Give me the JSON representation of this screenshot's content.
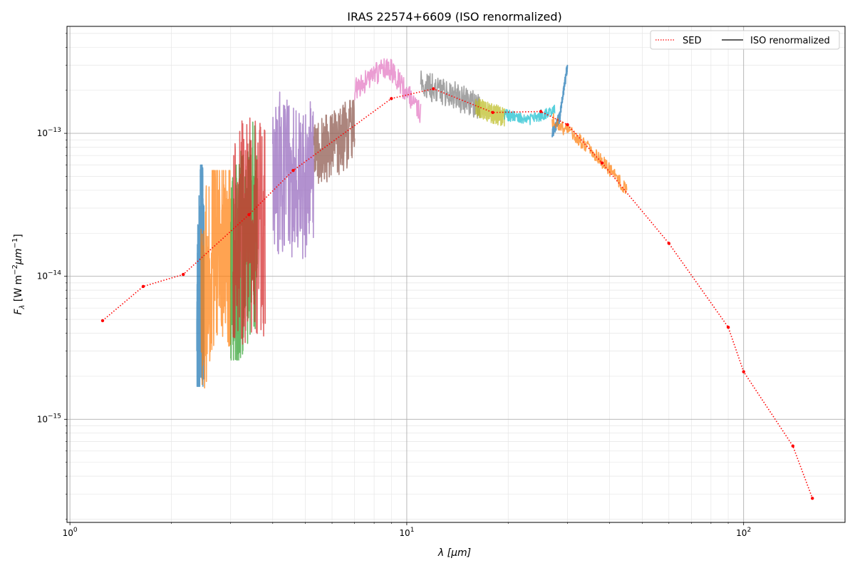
{
  "chart_data": {
    "type": "line",
    "title": "IRAS 22574+6609 (ISO renormalized)",
    "xlabel": "λ [μm]",
    "ylabel_main": "F",
    "ylabel_sub": "λ",
    "ylabel_unit": " [W m",
    "ylabel_exp1": "−2",
    "ylabel_mid": "μm",
    "ylabel_exp2": "−1",
    "ylabel_end": "]",
    "xscale": "log",
    "yscale": "log",
    "xlim": [
      0.98,
      200
    ],
    "ylim": [
      1.9e-16,
      5.6e-13
    ],
    "x_ticks": [
      {
        "value": 1,
        "base": "10",
        "exp": "0"
      },
      {
        "value": 10,
        "base": "10",
        "exp": "1"
      },
      {
        "value": 100,
        "base": "10",
        "exp": "2"
      }
    ],
    "y_ticks": [
      {
        "value": 1e-15,
        "base": "10",
        "exp": "−15"
      },
      {
        "value": 1e-14,
        "base": "10",
        "exp": "−14"
      },
      {
        "value": 1e-13,
        "base": "10",
        "exp": "−13"
      }
    ],
    "grid": true,
    "legend": {
      "position": "top-right",
      "entries": [
        {
          "label": "SED",
          "style": "dotted",
          "color": "#ff0000"
        },
        {
          "label": "ISO renormalized",
          "style": "solid",
          "color": "#000000"
        }
      ]
    },
    "sed": {
      "name": "SED",
      "color": "#ff0000",
      "x": [
        1.25,
        1.65,
        2.17,
        3.4,
        4.6,
        9.0,
        12.0,
        18.0,
        25.0,
        30.0,
        38.0,
        60.0,
        90.0,
        100.0,
        140.0,
        160.0
      ],
      "y": [
        4.9e-15,
        8.5e-15,
        1.03e-14,
        2.7e-14,
        5.5e-14,
        1.75e-13,
        2.05e-13,
        1.4e-13,
        1.42e-13,
        1.15e-13,
        6.2e-14,
        1.7e-14,
        4.4e-15,
        2.15e-15,
        6.5e-16,
        2.8e-16
      ]
    },
    "iso_segments": [
      {
        "color": "#1f77b4",
        "x0": 2.38,
        "x1": 2.5,
        "center": [
          2e-15,
          1.2e-14,
          1e-14
        ],
        "lo": 1.7e-15,
        "hi": 6e-14,
        "noise": 0.85,
        "seed": 3
      },
      {
        "color": "#ff7f0e",
        "x0": 2.45,
        "x1": 3.0,
        "center": [
          6e-15,
          1.8e-14,
          1.5e-14
        ],
        "lo": 1.45e-15,
        "hi": 5.5e-14,
        "noise": 0.7,
        "seed": 7
      },
      {
        "color": "#2ca02c",
        "x0": 3.0,
        "x1": 3.6,
        "center": [
          8e-15,
          1.6e-14,
          2.5e-14
        ],
        "lo": 2.6e-15,
        "hi": 3.5e-13,
        "noise": 0.75,
        "seed": 11
      },
      {
        "color": "#d62728",
        "x0": 3.05,
        "x1": 3.8,
        "center": [
          2e-14,
          2.2e-14,
          2.4e-14
        ],
        "lo": 2.6e-15,
        "hi": 3.6e-13,
        "noise": 0.8,
        "seed": 13
      },
      {
        "color": "#9467bd",
        "x0": 4.0,
        "x1": 5.3,
        "center": [
          6e-14,
          5e-14,
          5e-14
        ],
        "lo": 4.8e-15,
        "hi": 2.1e-13,
        "noise": 0.6,
        "seed": 17
      },
      {
        "color": "#8c564b",
        "x0": 5.3,
        "x1": 7.0,
        "center": [
          7e-14,
          8.5e-14,
          1.1e-13
        ],
        "lo": 2.5e-14,
        "hi": 1.7e-13,
        "noise": 0.25,
        "seed": 19
      },
      {
        "color": "#e377c2",
        "x0": 7.0,
        "x1": 11.0,
        "center": [
          2e-13,
          3e-13,
          1.4e-13
        ],
        "lo": 9.5e-14,
        "hi": 3.9e-13,
        "noise": 0.08,
        "seed": 23
      },
      {
        "color": "#7f7f7f",
        "x0": 11.0,
        "x1": 16.5,
        "center": [
          2.2e-13,
          1.9e-13,
          1.5e-13
        ],
        "lo": 7.6e-14,
        "hi": 3.1e-13,
        "noise": 0.1,
        "seed": 29
      },
      {
        "color": "#bcbd22",
        "x0": 16.0,
        "x1": 19.5,
        "center": [
          1.55e-13,
          1.4e-13,
          1.3e-13
        ],
        "lo": 8.5e-14,
        "hi": 2e-13,
        "noise": 0.07,
        "seed": 31
      },
      {
        "color": "#17becf",
        "x0": 19.5,
        "x1": 27.5,
        "center": [
          1.35e-13,
          1.25e-13,
          1.45e-13
        ],
        "lo": 1.15e-13,
        "hi": 1.7e-13,
        "noise": 0.04,
        "seed": 37
      },
      {
        "color": "#1f77b4",
        "x0": 27.0,
        "x1": 30.0,
        "center": [
          1e-13,
          1.3e-13,
          3e-13
        ],
        "lo": 9e-14,
        "hi": 3e-13,
        "noise": 0.04,
        "seed": 41
      },
      {
        "color": "#ff7f0e",
        "x0": 27.0,
        "x1": 45.0,
        "center": [
          1.25e-13,
          8e-14,
          4e-14
        ],
        "lo": 1.9e-14,
        "hi": 1.5e-13,
        "noise": 0.05,
        "seed": 43
      }
    ]
  }
}
